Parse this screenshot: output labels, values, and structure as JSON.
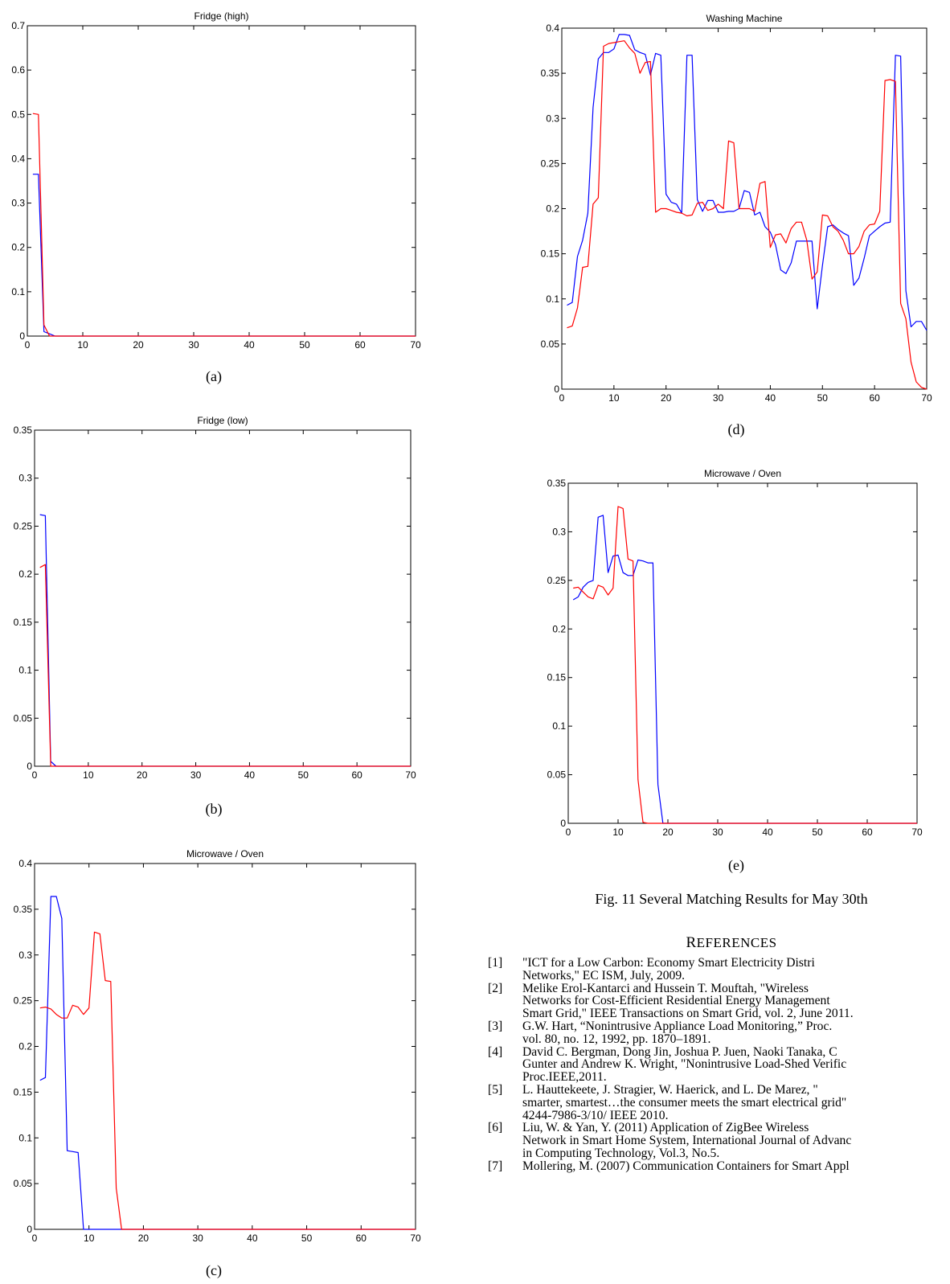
{
  "colors": {
    "series1": "#0000ff",
    "series2": "#ff0000",
    "axis": "#000000"
  },
  "charts": {
    "a": {
      "title": "Fridge (high)",
      "label": "(a)",
      "xticks": [
        "0",
        "10",
        "20",
        "30",
        "40",
        "50",
        "60",
        "70"
      ],
      "yticks": [
        "0",
        "0.1",
        "0.2",
        "0.3",
        "0.4",
        "0.5",
        "0.6",
        "0.7"
      ]
    },
    "b": {
      "title": "Fridge (low)",
      "label": "(b)",
      "xticks": [
        "0",
        "10",
        "20",
        "30",
        "40",
        "50",
        "60",
        "70"
      ],
      "yticks": [
        "0",
        "0.05",
        "0.1",
        "0.15",
        "0.2",
        "0.25",
        "0.3",
        "0.35"
      ]
    },
    "c": {
      "title": "Microwave / Oven",
      "label": "(c)",
      "xticks": [
        "0",
        "10",
        "20",
        "30",
        "40",
        "50",
        "60",
        "70"
      ],
      "yticks": [
        "0",
        "0.05",
        "0.1",
        "0.15",
        "0.2",
        "0.25",
        "0.3",
        "0.35",
        "0.4"
      ]
    },
    "d": {
      "title": "Washing Machine",
      "label": "(d)",
      "xticks": [
        "0",
        "10",
        "20",
        "30",
        "40",
        "50",
        "60",
        "70"
      ],
      "yticks": [
        "0",
        "0.05",
        "0.1",
        "0.15",
        "0.2",
        "0.25",
        "0.3",
        "0.35",
        "0.4"
      ]
    },
    "e": {
      "title": "Microwave / Oven",
      "label": "(e)",
      "xticks": [
        "0",
        "10",
        "20",
        "30",
        "40",
        "50",
        "60",
        "70"
      ],
      "yticks": [
        "0",
        "0.05",
        "0.1",
        "0.15",
        "0.2",
        "0.25",
        "0.3",
        "0.35"
      ]
    }
  },
  "chart_data": [
    {
      "id": "a",
      "type": "line",
      "title": "Fridge (high)",
      "xlim": [
        0,
        70
      ],
      "ylim": [
        0,
        0.7
      ],
      "series": [
        {
          "color": "#0000ff",
          "x": [
            1,
            2,
            3,
            4,
            5,
            70
          ],
          "y": [
            0.365,
            0.365,
            0.01,
            0.005,
            0,
            0
          ]
        },
        {
          "color": "#ff0000",
          "x": [
            1,
            2,
            3,
            4,
            70
          ],
          "y": [
            0.502,
            0.5,
            0.025,
            0,
            0
          ]
        }
      ]
    },
    {
      "id": "b",
      "type": "line",
      "title": "Fridge (low)",
      "xlim": [
        0,
        70
      ],
      "ylim": [
        0,
        0.35
      ],
      "series": [
        {
          "color": "#0000ff",
          "x": [
            1,
            2,
            3,
            4,
            70
          ],
          "y": [
            0.262,
            0.261,
            0.005,
            0,
            0
          ]
        },
        {
          "color": "#ff0000",
          "x": [
            1,
            2,
            3,
            70
          ],
          "y": [
            0.207,
            0.21,
            0,
            0
          ]
        }
      ]
    },
    {
      "id": "c",
      "type": "line",
      "title": "Microwave / Oven",
      "xlim": [
        0,
        70
      ],
      "ylim": [
        0,
        0.4
      ],
      "series": [
        {
          "color": "#0000ff",
          "x": [
            1,
            2,
            3,
            4,
            5,
            6,
            7,
            8,
            9,
            10,
            70
          ],
          "y": [
            0.163,
            0.166,
            0.364,
            0.364,
            0.34,
            0.086,
            0.085,
            0.084,
            0,
            0,
            0
          ]
        },
        {
          "color": "#ff0000",
          "x": [
            1,
            2,
            3,
            4,
            5,
            6,
            7,
            8,
            9,
            10,
            11,
            12,
            13,
            14,
            15,
            16,
            70
          ],
          "y": [
            0.242,
            0.243,
            0.241,
            0.235,
            0.231,
            0.231,
            0.245,
            0.243,
            0.235,
            0.242,
            0.325,
            0.323,
            0.272,
            0.271,
            0.045,
            0,
            0
          ]
        }
      ]
    },
    {
      "id": "d",
      "type": "line",
      "title": "Washing Machine",
      "xlim": [
        0,
        70
      ],
      "ylim": [
        0,
        0.4
      ],
      "series": [
        {
          "color": "#0000ff",
          "x": [
            1,
            2,
            3,
            4,
            5,
            6,
            7,
            8,
            9,
            10,
            11,
            12,
            13,
            14,
            15,
            16,
            17,
            18,
            19,
            20,
            21,
            22,
            23,
            24,
            25,
            26,
            27,
            28,
            29,
            30,
            31,
            32,
            33,
            34,
            35,
            36,
            37,
            38,
            39,
            40,
            41,
            42,
            43,
            44,
            45,
            46,
            47,
            48,
            49,
            50,
            51,
            52,
            53,
            54,
            55,
            56,
            57,
            58,
            59,
            60,
            61,
            62,
            63,
            64,
            65,
            66,
            67,
            68,
            69,
            70
          ],
          "y": [
            0.093,
            0.096,
            0.147,
            0.165,
            0.195,
            0.312,
            0.366,
            0.373,
            0.373,
            0.377,
            0.393,
            0.393,
            0.392,
            0.376,
            0.373,
            0.371,
            0.348,
            0.372,
            0.37,
            0.216,
            0.207,
            0.205,
            0.195,
            0.37,
            0.37,
            0.21,
            0.197,
            0.209,
            0.209,
            0.196,
            0.196,
            0.197,
            0.197,
            0.2,
            0.22,
            0.218,
            0.193,
            0.196,
            0.18,
            0.174,
            0.16,
            0.132,
            0.128,
            0.14,
            0.164,
            0.164,
            0.164,
            0.164,
            0.089,
            0.137,
            0.18,
            0.182,
            0.177,
            0.173,
            0.17,
            0.115,
            0.123,
            0.145,
            0.17,
            0.175,
            0.18,
            0.184,
            0.185,
            0.37,
            0.369,
            0.109,
            0.069,
            0.075,
            0.075,
            0.065
          ]
        },
        {
          "color": "#ff0000",
          "x": [
            1,
            2,
            3,
            4,
            5,
            6,
            7,
            8,
            9,
            10,
            11,
            12,
            13,
            14,
            15,
            16,
            17,
            18,
            19,
            20,
            21,
            22,
            23,
            24,
            25,
            26,
            27,
            28,
            29,
            30,
            31,
            32,
            33,
            34,
            35,
            36,
            37,
            38,
            39,
            40,
            41,
            42,
            43,
            44,
            45,
            46,
            47,
            48,
            49,
            50,
            51,
            52,
            53,
            54,
            55,
            56,
            57,
            58,
            59,
            60,
            61,
            62,
            63,
            64,
            65,
            66,
            67,
            68,
            69,
            70
          ],
          "y": [
            0.068,
            0.07,
            0.09,
            0.135,
            0.136,
            0.205,
            0.212,
            0.38,
            0.383,
            0.384,
            0.385,
            0.386,
            0.378,
            0.372,
            0.35,
            0.362,
            0.363,
            0.196,
            0.2,
            0.2,
            0.198,
            0.196,
            0.195,
            0.192,
            0.193,
            0.206,
            0.207,
            0.198,
            0.2,
            0.205,
            0.2,
            0.275,
            0.273,
            0.2,
            0.2,
            0.2,
            0.197,
            0.228,
            0.23,
            0.157,
            0.171,
            0.172,
            0.162,
            0.178,
            0.185,
            0.185,
            0.165,
            0.122,
            0.13,
            0.193,
            0.192,
            0.18,
            0.175,
            0.165,
            0.15,
            0.15,
            0.158,
            0.175,
            0.182,
            0.183,
            0.197,
            0.342,
            0.343,
            0.341,
            0.095,
            0.078,
            0.03,
            0.008,
            0.002,
            0
          ]
        }
      ]
    },
    {
      "id": "e",
      "type": "line",
      "title": "Microwave / Oven",
      "xlim": [
        0,
        70
      ],
      "ylim": [
        0,
        0.35
      ],
      "series": [
        {
          "color": "#0000ff",
          "x": [
            1,
            2,
            3,
            4,
            5,
            6,
            7,
            8,
            9,
            10,
            11,
            12,
            13,
            14,
            15,
            16,
            17,
            18,
            19,
            70
          ],
          "y": [
            0.23,
            0.233,
            0.243,
            0.248,
            0.25,
            0.315,
            0.317,
            0.258,
            0.275,
            0.276,
            0.258,
            0.255,
            0.255,
            0.271,
            0.27,
            0.268,
            0.268,
            0.04,
            0,
            0
          ]
        },
        {
          "color": "#ff0000",
          "x": [
            1,
            2,
            3,
            4,
            5,
            6,
            7,
            8,
            9,
            10,
            11,
            12,
            13,
            14,
            15,
            16,
            70
          ],
          "y": [
            0.242,
            0.243,
            0.238,
            0.233,
            0.231,
            0.245,
            0.243,
            0.235,
            0.242,
            0.326,
            0.324,
            0.272,
            0.27,
            0.045,
            0.001,
            0,
            0
          ]
        }
      ]
    }
  ],
  "caption": "Fig. 11 Several Matching Results for May 30th",
  "references_heading": {
    "first": "R",
    "rest": "EFERENCES"
  },
  "references": [
    {
      "num": "[1]",
      "lines": [
        "\"ICT for a Low Carbon: Economy Smart Electricity Distri",
        "Networks,\" EC ISM, July, 2009."
      ]
    },
    {
      "num": "[2]",
      "lines": [
        "Melike Erol-Kantarci and Hussein T. Mouftah, \"Wireless",
        "Networks for Cost-Efficient Residential Energy Management",
        "Smart Grid,\" IEEE Transactions on Smart Grid, vol. 2, June 2011."
      ]
    },
    {
      "num": "[3]",
      "lines": [
        "G.W. Hart, “Nonintrusive Appliance Load Monitoring,” Proc.",
        "vol. 80, no. 12, 1992, pp. 1870–1891."
      ]
    },
    {
      "num": "[4]",
      "lines": [
        "David C. Bergman, Dong Jin, Joshua P. Juen, Naoki Tanaka, C",
        "Gunter and Andrew K. Wright, \"Nonintrusive Load-Shed Verific",
        "Proc.IEEE,2011."
      ]
    },
    {
      "num": "[5]",
      "lines": [
        "L. Hauttekeete, J. Stragier, W. Haerick, and L. De Marez, \"",
        "smarter, smartest…the consumer meets the smart electrical grid\"",
        "4244-7986-3/10/ IEEE 2010."
      ]
    },
    {
      "num": "[6]",
      "lines": [
        "Liu, W. & Yan, Y. (2011) Application of ZigBee Wireless",
        "Network in Smart Home System, International Journal of Advanc",
        "in Computing Technology, Vol.3, No.5."
      ]
    },
    {
      "num": "[7]",
      "lines": [
        "Mollering, M. (2007) Communication Containers for Smart Appl"
      ]
    }
  ]
}
